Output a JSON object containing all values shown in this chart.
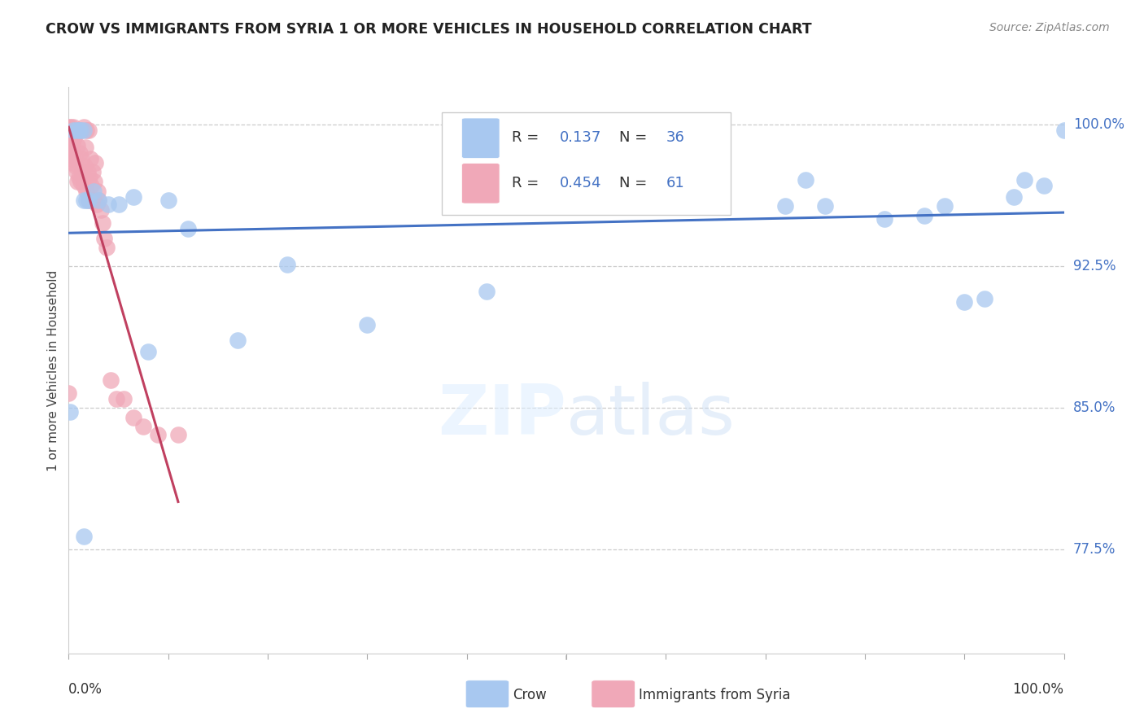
{
  "title": "CROW VS IMMIGRANTS FROM SYRIA 1 OR MORE VEHICLES IN HOUSEHOLD CORRELATION CHART",
  "source": "Source: ZipAtlas.com",
  "ylabel": "1 or more Vehicles in Household",
  "ytick_values": [
    0.775,
    0.85,
    0.925,
    1.0
  ],
  "crow_color": "#a8c8f0",
  "syria_color": "#f0a8b8",
  "crow_line_color": "#4472c4",
  "syria_line_color": "#c04060",
  "background_color": "#ffffff",
  "crow_R": 0.137,
  "crow_N": 36,
  "syria_R": 0.454,
  "syria_N": 61,
  "crow_x": [
    0.001,
    0.005,
    0.008,
    0.01,
    0.012,
    0.015,
    0.018,
    0.02,
    0.025,
    0.03,
    0.04,
    0.05,
    0.065,
    0.08,
    0.1,
    0.12,
    0.17,
    0.22,
    0.3,
    0.42,
    0.5,
    0.62,
    0.72,
    0.74,
    0.76,
    0.82,
    0.86,
    0.88,
    0.9,
    0.92,
    0.95,
    0.96,
    0.98,
    1.0,
    0.015,
    0.015
  ],
  "crow_y": [
    0.848,
    0.997,
    0.997,
    0.997,
    0.997,
    0.997,
    0.96,
    0.96,
    0.965,
    0.96,
    0.958,
    0.958,
    0.962,
    0.88,
    0.96,
    0.945,
    0.886,
    0.926,
    0.894,
    0.912,
    0.963,
    0.963,
    0.957,
    0.971,
    0.957,
    0.95,
    0.952,
    0.957,
    0.906,
    0.908,
    0.962,
    0.971,
    0.968,
    0.997,
    0.96,
    0.782
  ],
  "syria_x": [
    0.0,
    0.0,
    0.001,
    0.001,
    0.002,
    0.002,
    0.002,
    0.003,
    0.003,
    0.003,
    0.004,
    0.004,
    0.005,
    0.005,
    0.005,
    0.006,
    0.006,
    0.007,
    0.007,
    0.008,
    0.008,
    0.009,
    0.009,
    0.01,
    0.01,
    0.011,
    0.012,
    0.012,
    0.013,
    0.014,
    0.015,
    0.015,
    0.016,
    0.017,
    0.018,
    0.018,
    0.019,
    0.02,
    0.02,
    0.021,
    0.022,
    0.023,
    0.024,
    0.025,
    0.026,
    0.027,
    0.028,
    0.029,
    0.03,
    0.032,
    0.034,
    0.036,
    0.038,
    0.042,
    0.048,
    0.055,
    0.065,
    0.075,
    0.09,
    0.11,
    0.0
  ],
  "syria_y": [
    0.999,
    0.994,
    0.997,
    0.99,
    0.999,
    0.993,
    0.985,
    0.997,
    0.99,
    0.982,
    0.997,
    0.985,
    0.999,
    0.992,
    0.98,
    0.997,
    0.983,
    0.995,
    0.978,
    0.997,
    0.975,
    0.989,
    0.97,
    0.997,
    0.972,
    0.985,
    0.997,
    0.97,
    0.982,
    0.975,
    0.999,
    0.968,
    0.978,
    0.988,
    0.997,
    0.965,
    0.975,
    0.997,
    0.96,
    0.972,
    0.982,
    0.968,
    0.975,
    0.96,
    0.97,
    0.98,
    0.958,
    0.965,
    0.96,
    0.955,
    0.948,
    0.94,
    0.935,
    0.865,
    0.855,
    0.855,
    0.845,
    0.84,
    0.836,
    0.836,
    0.858
  ]
}
